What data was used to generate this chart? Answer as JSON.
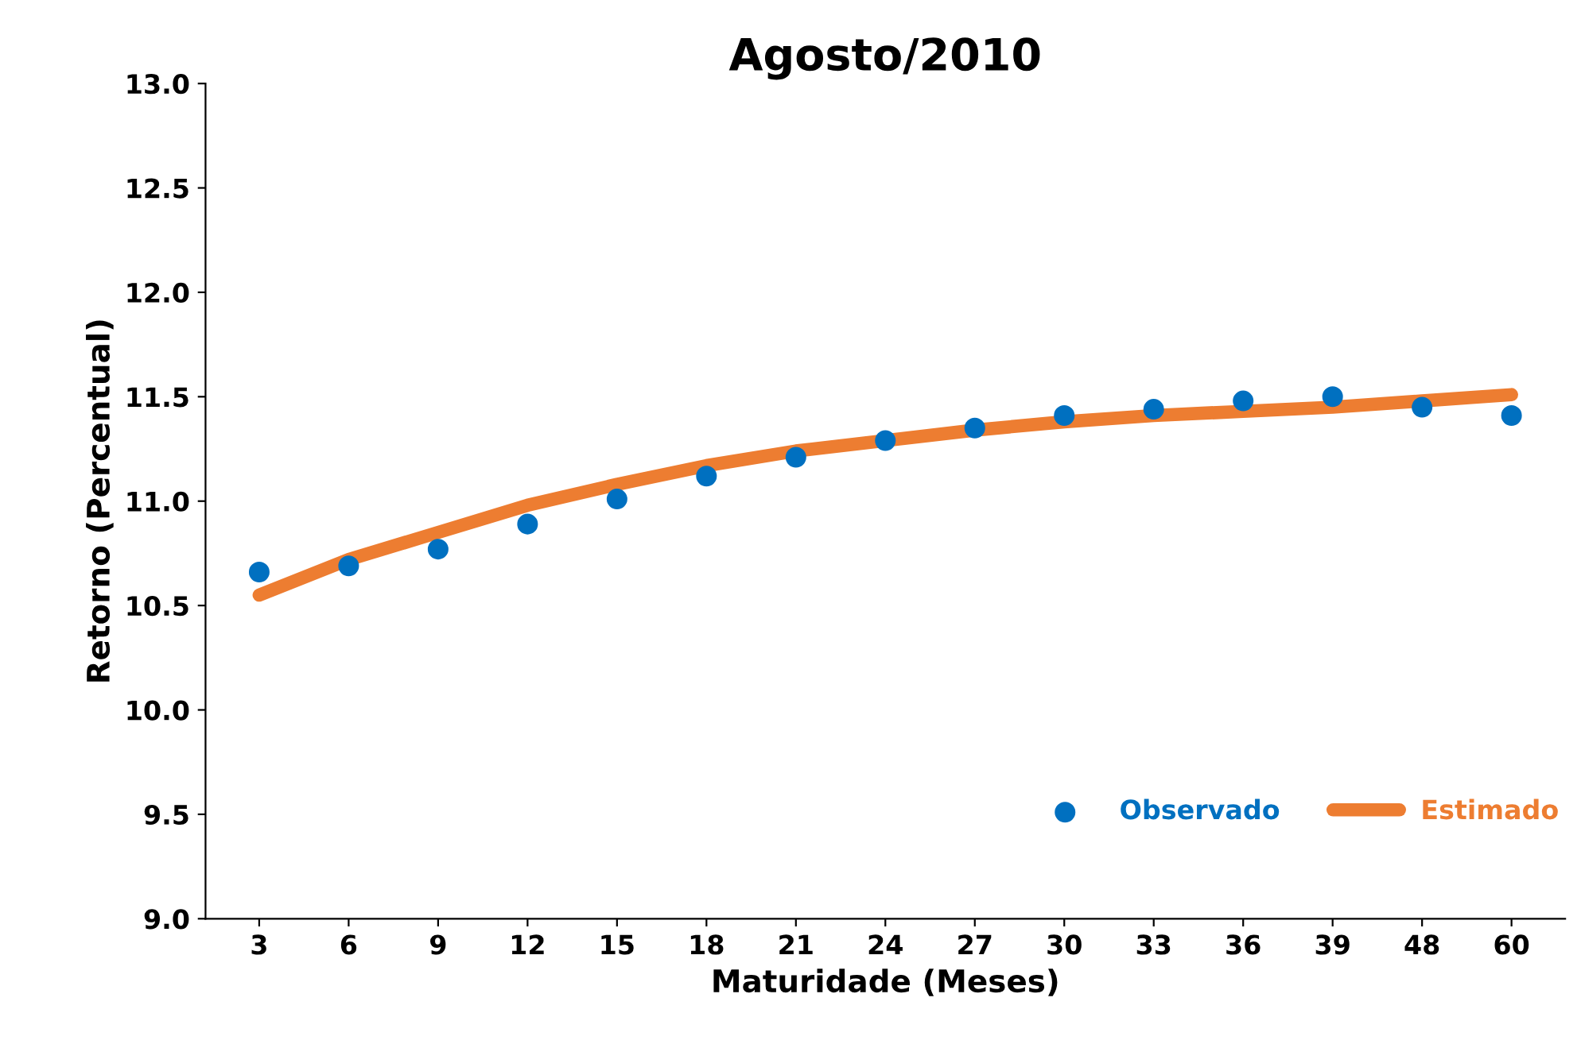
{
  "chart_data": {
    "type": "line",
    "title": "Agosto/2010",
    "xlabel": "Maturidade (Meses)",
    "ylabel": "Retorno (Percentual)",
    "categories": [
      "3",
      "6",
      "9",
      "12",
      "15",
      "18",
      "21",
      "24",
      "27",
      "30",
      "33",
      "36",
      "39",
      "48",
      "60"
    ],
    "series": [
      {
        "name": "Observado",
        "type": "scatter",
        "color": "#0070c0",
        "values": [
          10.66,
          10.69,
          10.77,
          10.89,
          11.01,
          11.12,
          11.21,
          11.29,
          11.35,
          11.41,
          11.44,
          11.48,
          11.5,
          11.45,
          11.41
        ]
      },
      {
        "name": "Estimado",
        "color": "#ed7d31",
        "values": [
          10.55,
          10.72,
          10.85,
          10.98,
          11.08,
          11.17,
          11.24,
          11.29,
          11.34,
          11.38,
          11.41,
          11.43,
          11.45,
          11.48,
          11.51
        ]
      }
    ],
    "ylim": [
      9.0,
      13.0
    ],
    "yticks": [
      {
        "value": 9.0,
        "label": "9.0"
      },
      {
        "value": 9.5,
        "label": "9.5"
      },
      {
        "value": 10.0,
        "label": "10.0"
      },
      {
        "value": 10.5,
        "label": "10.5"
      },
      {
        "value": 11.0,
        "label": "11.0"
      },
      {
        "value": 11.5,
        "label": "11.5"
      },
      {
        "value": 12.0,
        "label": "12.0"
      },
      {
        "value": 12.5,
        "label": "12.5"
      },
      {
        "value": 13.0,
        "label": "13.0"
      }
    ],
    "grid": false,
    "legend": "bottom right"
  }
}
